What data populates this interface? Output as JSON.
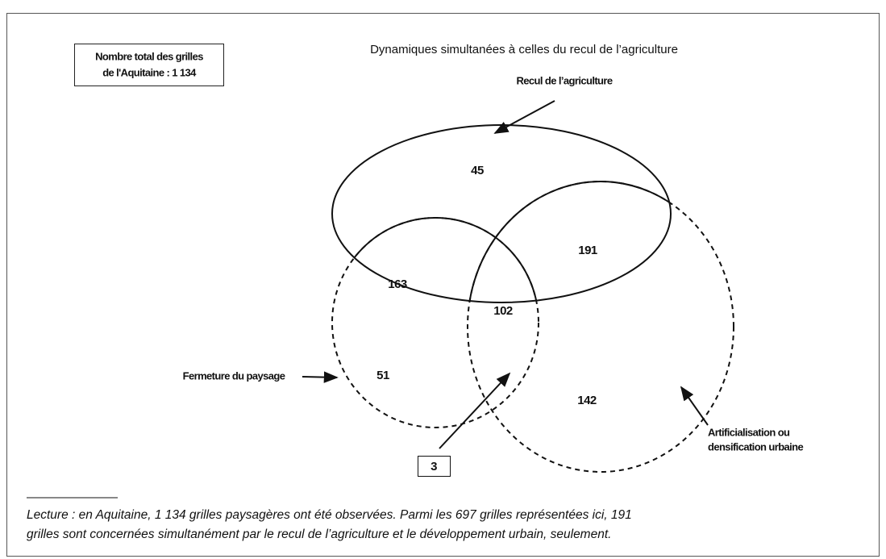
{
  "total": [
    "Nombre total des grilles",
    "de l'Aquitaine : 1 134"
  ],
  "subtitle": "Dynamiques simultanées à celles du recul de l’agriculture",
  "sets": {
    "recul": "Recul de l’agriculture",
    "fermeture": "Fermeture du paysage",
    "artificialisation": [
      "Artificialisation ou",
      "densification urbaine"
    ]
  },
  "regions": {
    "recul_only": 45,
    "recul_artif": 191,
    "recul_ferm": 163,
    "all_three": 102,
    "ferm_only": 51,
    "artif_only": 142,
    "ferm_artif": 3
  },
  "note": [
    "Lecture : en Aquitaine, 1 134 grilles paysagères ont été observées. Parmi les 697 grilles représentées ici, 191",
    "grilles sont concernées simultanément par le recul de l’agriculture et le développement urbain, seulement."
  ]
}
